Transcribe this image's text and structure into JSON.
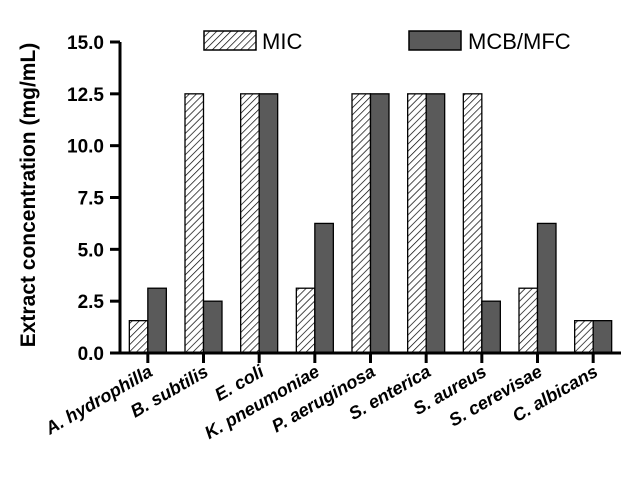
{
  "chart_data": {
    "type": "bar",
    "title": "",
    "xlabel": "",
    "ylabel": "Extract concentration (mg/mL)",
    "ylim": [
      0,
      15
    ],
    "yticks": [
      "0.0",
      "2.5",
      "5.0",
      "7.5",
      "10.0",
      "12.5",
      "15.0"
    ],
    "grid": false,
    "legend_position": "top",
    "categories": [
      "A. hydrophilla",
      "B. subtilis",
      "E. coli",
      "K. pneumoniae",
      "P. aeruginosa",
      "S. enterica",
      "S. aureus",
      "S. cerevisae",
      "C. albicans"
    ],
    "series": [
      {
        "name": "MIC",
        "style": "hatched",
        "color": "#ffffff",
        "values": [
          1.56,
          12.5,
          12.5,
          3.125,
          12.5,
          12.5,
          12.5,
          3.125,
          1.56
        ]
      },
      {
        "name": "MCB/MFC",
        "style": "solid",
        "color": "#5a5a5a",
        "values": [
          3.125,
          2.5,
          12.5,
          6.25,
          12.5,
          12.5,
          2.5,
          6.25,
          1.56
        ]
      }
    ]
  }
}
